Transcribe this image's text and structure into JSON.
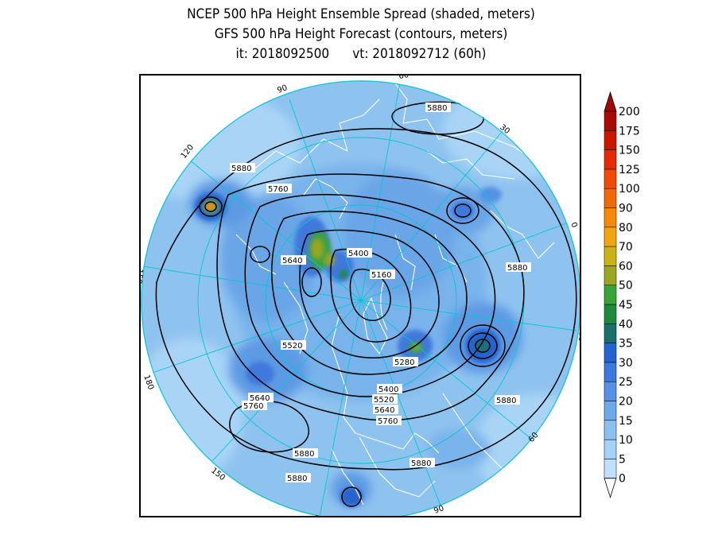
{
  "title": {
    "line1": "NCEP 500 hPa Height Ensemble Spread (shaded, meters)",
    "line2": "GFS 500 hPa Height Forecast (contours, meters)",
    "line3": "it: 2018092500      vt: 2018092712 (60h)"
  },
  "map": {
    "projection": "north-polar-stereographic",
    "longitude_labels": [
      "60",
      "30",
      "0",
      "30",
      "60",
      "90",
      "120",
      "150",
      "180",
      "150",
      "120",
      "90"
    ],
    "contour_labels": [
      "5880",
      "5880",
      "5760",
      "5640",
      "5400",
      "5160",
      "5880",
      "5520",
      "5280",
      "5400",
      "5520",
      "5640",
      "5760",
      "5640",
      "5760",
      "5880",
      "5880",
      "5880",
      "5880"
    ],
    "colors": {
      "ocean_base": "#8fc3ef",
      "land_outline": "#ffffff",
      "contour": "#000000",
      "grid": "#00c8d2"
    }
  },
  "colorbar": {
    "levels": [
      "0",
      "5",
      "10",
      "15",
      "20",
      "25",
      "30",
      "35",
      "40",
      "45",
      "50",
      "60",
      "70",
      "80",
      "90",
      "100",
      "125",
      "150",
      "175",
      "200"
    ],
    "colors": [
      "#bfe0ff",
      "#a6d2f7",
      "#8dbff0",
      "#6ea9ea",
      "#5591e4",
      "#3f78dc",
      "#2563cf",
      "#1a6f6a",
      "#1f8a3c",
      "#3aa23a",
      "#9aa624",
      "#ccb21a",
      "#f0a410",
      "#f48a0c",
      "#f06a0a",
      "#ee4a08",
      "#e42a06",
      "#cc1604",
      "#a80a04"
    ],
    "top_color": "#a00a04"
  }
}
